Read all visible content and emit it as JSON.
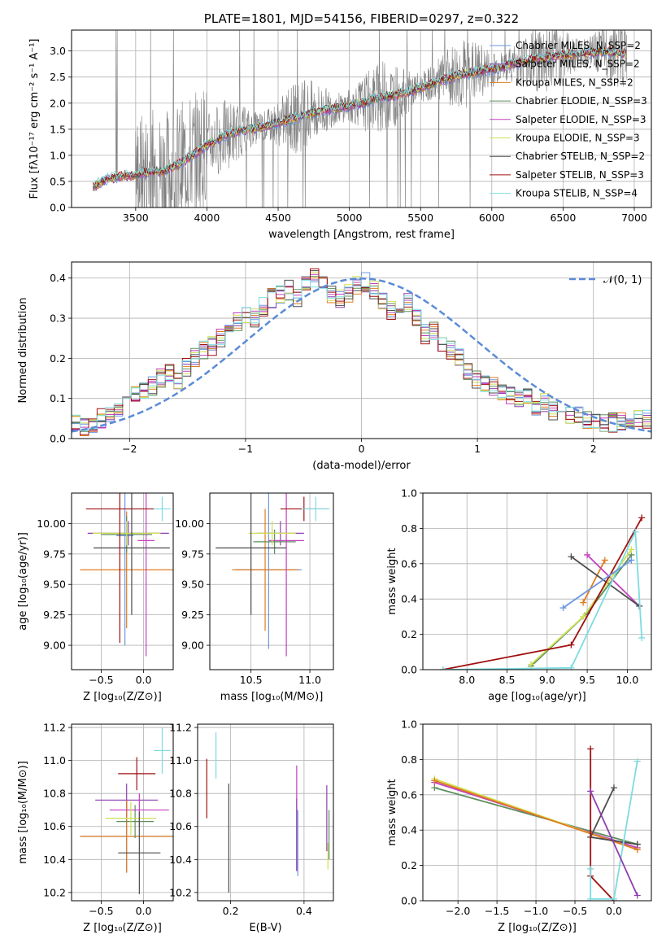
{
  "colors": {
    "chabrier_miles": "#6b98e0",
    "salpeter_miles": "#8f3fb0",
    "kroupa_miles": "#e07b1f",
    "chabrier_elodie": "#5e8f5e",
    "salpeter_elodie": "#c43fbf",
    "kroupa_elodie": "#cfe054",
    "chabrier_stelib": "#4d4d4d",
    "salpeter_stelib": "#a01010",
    "kroupa_stelib": "#7ddbe0",
    "observed": "#808080",
    "normal_curve": "#5b8bd6"
  },
  "chart_data": [
    {
      "id": "spectrum",
      "type": "line",
      "title": "PLATE=1801, MJD=54156, FIBERID=0297, z=0.322",
      "xlabel": "wavelength [Angstrom, rest frame]",
      "ylabel": "Flux [fλ10⁻¹⁷ erg cm⁻² s⁻¹ A⁻¹]",
      "xlim": [
        3050,
        7120
      ],
      "ylim": [
        0,
        3.4
      ],
      "xticks": [
        "3500",
        "4000",
        "4500",
        "5000",
        "5500",
        "6000",
        "6500",
        "7000"
      ],
      "yticks": [
        "0.0",
        "0.5",
        "1.0",
        "1.5",
        "2.0",
        "2.5",
        "3.0"
      ],
      "legend_position": "top-right",
      "legend": [
        "Chabrier MILES, N_SSP=2",
        "Salpeter MILES, N_SSP=2",
        "Kroupa MILES, N_SSP=2",
        "Chabrier ELODIE, N_SSP=3",
        "Salpeter ELODIE, N_SSP=3",
        "Kroupa ELODIE, N_SSP=3",
        "Chabrier STELIB, N_SSP=2",
        "Salpeter STELIB, N_SSP=3",
        "Kroupa STELIB, N_SSP=4"
      ],
      "model_continuum": {
        "x": [
          3200,
          3300,
          3400,
          3500,
          3600,
          3700,
          3800,
          3900,
          4000,
          4100,
          4200,
          4300,
          4400,
          4500,
          4600,
          4700,
          4800,
          4900,
          5000,
          5100,
          5200,
          5300,
          5400,
          5500,
          5600,
          5700,
          5800,
          5900,
          6000,
          6100,
          6200,
          6300,
          6400,
          6500,
          6600,
          6700,
          6800,
          6900
        ],
        "y": [
          0.4,
          0.55,
          0.6,
          0.62,
          0.68,
          0.7,
          0.82,
          1.0,
          1.2,
          1.35,
          1.45,
          1.5,
          1.55,
          1.62,
          1.7,
          1.78,
          1.85,
          1.9,
          1.95,
          2.0,
          2.1,
          2.15,
          2.2,
          2.3,
          2.4,
          2.48,
          2.55,
          2.6,
          2.65,
          2.72,
          2.78,
          2.85,
          2.88,
          2.92,
          2.95,
          2.97,
          3.0,
          2.95
        ]
      }
    },
    {
      "id": "residuals",
      "type": "bar",
      "xlabel": "(data-model)/error",
      "ylabel": "Normed distribution",
      "xlim": [
        -2.5,
        2.5
      ],
      "ylim": [
        0,
        0.44
      ],
      "xticks": [
        "−2",
        "−1",
        "0",
        "1",
        "2"
      ],
      "yticks": [
        "0.0",
        "0.1",
        "0.2",
        "0.3",
        "0.4"
      ],
      "legend": [
        "𝒩(0, 1)"
      ],
      "legend_position": "top-right",
      "bin_edges_start": -2.5,
      "bin_width": 0.1,
      "mean_hist": [
        0.04,
        0.03,
        0.03,
        0.05,
        0.06,
        0.08,
        0.09,
        0.11,
        0.12,
        0.13,
        0.15,
        0.16,
        0.14,
        0.18,
        0.2,
        0.22,
        0.23,
        0.25,
        0.27,
        0.29,
        0.31,
        0.3,
        0.33,
        0.35,
        0.36,
        0.37,
        0.35,
        0.38,
        0.4,
        0.38,
        0.36,
        0.35,
        0.36,
        0.38,
        0.39,
        0.37,
        0.34,
        0.32,
        0.33,
        0.34,
        0.3,
        0.26,
        0.27,
        0.24,
        0.22,
        0.2,
        0.17,
        0.15,
        0.14,
        0.13,
        0.12,
        0.11,
        0.1,
        0.1,
        0.08,
        0.09,
        0.07,
        0.08,
        0.06,
        0.06,
        0.05,
        0.05,
        0.04,
        0.04,
        0.04,
        0.03,
        0.05,
        0.05
      ]
    },
    {
      "id": "age_vs_Z",
      "type": "scatter",
      "xlabel": "Z [log₁₀(Z/Z⊙)]",
      "ylabel": "age  [log₁₀(age/yr)]",
      "xlim": [
        -0.85,
        0.35
      ],
      "ylim": [
        8.8,
        10.25
      ],
      "xticks": [
        "−0.5",
        "0.0"
      ],
      "yticks": [
        "9.00",
        "9.25",
        "9.50",
        "9.75",
        "10.00"
      ],
      "points": [
        {
          "s": "chabrier_miles",
          "x": -0.22,
          "y": 9.9,
          "xerr": 0.1,
          "yerr": 0.9
        },
        {
          "s": "salpeter_miles",
          "x": -0.18,
          "y": 9.92,
          "xerr": 0.48,
          "yerr": 0.1
        },
        {
          "s": "kroupa_miles",
          "x": -0.2,
          "y": 9.62,
          "xerr": 0.55,
          "yerr": 0.48
        },
        {
          "s": "chabrier_elodie",
          "x": -0.2,
          "y": 9.91,
          "xerr": 0.3,
          "yerr": 0.15
        },
        {
          "s": "salpeter_elodie",
          "x": 0.03,
          "y": 9.86,
          "xerr": 0.1,
          "yerr": 0.95
        },
        {
          "s": "kroupa_elodie",
          "x": -0.2,
          "y": 9.92,
          "xerr": 0.4,
          "yerr": 0.1
        },
        {
          "s": "chabrier_stelib",
          "x": -0.14,
          "y": 9.8,
          "xerr": 0.45,
          "yerr": 0.55
        },
        {
          "s": "salpeter_stelib",
          "x": -0.28,
          "y": 10.12,
          "xerr": 0.4,
          "yerr": 1.1
        },
        {
          "s": "kroupa_stelib",
          "x": 0.22,
          "y": 10.12,
          "xerr": 0.1,
          "yerr": 0.1
        }
      ]
    },
    {
      "id": "age_vs_mass",
      "type": "scatter",
      "xlabel": "mass [log₁₀(M/M⊙)]",
      "xlim": [
        10.15,
        11.2
      ],
      "ylim": [
        8.8,
        10.25
      ],
      "xticks": [
        "10.5",
        "11.0"
      ],
      "yticks": [
        "9.00",
        "9.25",
        "9.50",
        "9.75",
        "10.00"
      ],
      "points": [
        {
          "s": "chabrier_miles",
          "x": 10.65,
          "y": 9.62,
          "xerr": 0.28,
          "yerr": 0.65
        },
        {
          "s": "salpeter_miles",
          "x": 10.75,
          "y": 9.92,
          "xerr": 0.2,
          "yerr": 0.1
        },
        {
          "s": "kroupa_miles",
          "x": 10.62,
          "y": 9.62,
          "xerr": 0.28,
          "yerr": 0.5
        },
        {
          "s": "chabrier_elodie",
          "x": 10.7,
          "y": 9.85,
          "xerr": 0.18,
          "yerr": 0.1
        },
        {
          "s": "salpeter_elodie",
          "x": 10.8,
          "y": 9.86,
          "xerr": 0.15,
          "yerr": 0.95
        },
        {
          "s": "kroupa_elodie",
          "x": 10.68,
          "y": 9.92,
          "xerr": 0.2,
          "yerr": 0.1
        },
        {
          "s": "chabrier_stelib",
          "x": 10.5,
          "y": 9.8,
          "xerr": 0.3,
          "yerr": 0.55
        },
        {
          "s": "salpeter_stelib",
          "x": 10.95,
          "y": 10.12,
          "xerr": 0.2,
          "yerr": 0.1
        },
        {
          "s": "kroupa_stelib",
          "x": 11.05,
          "y": 10.12,
          "xerr": 0.12,
          "yerr": 0.1
        }
      ]
    },
    {
      "id": "weight_vs_age",
      "type": "line",
      "xlabel": "age  [log₁₀(age/yr)]",
      "ylabel": "mass weight",
      "xlim": [
        7.45,
        10.3
      ],
      "ylim": [
        0,
        1
      ],
      "xticks": [
        "8.0",
        "8.5",
        "9.0",
        "9.5",
        "10.0"
      ],
      "yticks": [
        "0.0",
        "0.2",
        "0.4",
        "0.6",
        "0.8",
        "1.0"
      ],
      "series": [
        {
          "s": "kroupa_miles",
          "x": [
            9.45,
            9.72
          ],
          "y": [
            0.38,
            0.62
          ]
        },
        {
          "s": "salpeter_elodie",
          "x": [
            9.5,
            10.15
          ],
          "y": [
            0.65,
            0.36
          ]
        },
        {
          "s": "chabrier_stelib",
          "x": [
            9.3,
            10.15
          ],
          "y": [
            0.64,
            0.36
          ]
        },
        {
          "s": "chabrier_elodie",
          "x": [
            8.8,
            9.5,
            10.05
          ],
          "y": [
            0.02,
            0.32,
            0.65
          ]
        },
        {
          "s": "kroupa_elodie",
          "x": [
            8.8,
            9.45,
            10.05
          ],
          "y": [
            0.03,
            0.3,
            0.68
          ]
        },
        {
          "s": "salpeter_stelib",
          "x": [
            7.7,
            9.3,
            10.18
          ],
          "y": [
            0.0,
            0.14,
            0.86
          ]
        },
        {
          "s": "kroupa_stelib",
          "x": [
            7.7,
            9.3,
            10.1,
            10.18
          ],
          "y": [
            0.0,
            0.01,
            0.78,
            0.18
          ]
        },
        {
          "s": "chabrier_miles",
          "x": [
            9.2,
            10.05
          ],
          "y": [
            0.35,
            0.62
          ]
        }
      ]
    },
    {
      "id": "mass_vs_Z",
      "type": "scatter",
      "xlabel": "Z [log₁₀(Z/Z⊙)]",
      "ylabel": "mass [log₁₀(M/M⊙)]",
      "xlim": [
        -0.85,
        0.35
      ],
      "ylim": [
        10.15,
        11.22
      ],
      "xticks": [
        "−0.5",
        "0.0"
      ],
      "yticks": [
        "10.2",
        "10.4",
        "10.6",
        "10.8",
        "11.0",
        "11.2"
      ],
      "points": [
        {
          "s": "chabrier_miles",
          "x": -0.2,
          "y": 10.54,
          "xerr": 0.55,
          "yerr": 0.22
        },
        {
          "s": "salpeter_miles",
          "x": -0.2,
          "y": 10.76,
          "xerr": 0.37,
          "yerr": 0.1
        },
        {
          "s": "kroupa_miles",
          "x": -0.2,
          "y": 10.54,
          "xerr": 0.55,
          "yerr": 0.22
        },
        {
          "s": "chabrier_elodie",
          "x": -0.1,
          "y": 10.63,
          "xerr": 0.22,
          "yerr": 0.1
        },
        {
          "s": "salpeter_elodie",
          "x": -0.05,
          "y": 10.7,
          "xerr": 0.35,
          "yerr": 0.1
        },
        {
          "s": "kroupa_elodie",
          "x": -0.15,
          "y": 10.65,
          "xerr": 0.3,
          "yerr": 0.1
        },
        {
          "s": "chabrier_stelib",
          "x": -0.05,
          "y": 10.44,
          "xerr": 0.25,
          "yerr": 0.25
        },
        {
          "s": "salpeter_stelib",
          "x": -0.08,
          "y": 10.92,
          "xerr": 0.22,
          "yerr": 0.1
        },
        {
          "s": "kroupa_stelib",
          "x": 0.22,
          "y": 11.06,
          "xerr": 0.1,
          "yerr": 0.14
        }
      ]
    },
    {
      "id": "mass_vs_ebv",
      "type": "scatter",
      "xlabel": "E(B-V)",
      "xlim": [
        0.11,
        0.48
      ],
      "ylim": [
        10.15,
        11.22
      ],
      "xticks": [
        "0.2",
        "0.4"
      ],
      "yticks": [
        "10.2",
        "10.4",
        "10.6",
        "10.8",
        "11.0",
        "11.2"
      ],
      "points": [
        {
          "s": "salpeter_stelib",
          "x": 0.135,
          "y": 10.83,
          "yerr": 0.18
        },
        {
          "s": "kroupa_stelib",
          "x": 0.16,
          "y": 11.03,
          "yerr": 0.14
        },
        {
          "s": "chabrier_stelib",
          "x": 0.195,
          "y": 10.53,
          "yerr": 0.33
        },
        {
          "s": "salpeter_elodie",
          "x": 0.38,
          "y": 10.65,
          "yerr": 0.32
        },
        {
          "s": "salpeter_miles",
          "x": 0.38,
          "y": 10.55,
          "yerr": 0.22
        },
        {
          "s": "chabrier_miles",
          "x": 0.383,
          "y": 10.5,
          "yerr": 0.2
        },
        {
          "s": "kroupa_elodie",
          "x": 0.465,
          "y": 10.42,
          "yerr": 0.08
        },
        {
          "s": "salpeter_miles",
          "x": 0.462,
          "y": 10.65,
          "yerr": 0.2
        },
        {
          "s": "chabrier_elodie",
          "x": 0.468,
          "y": 10.55,
          "yerr": 0.15
        }
      ]
    },
    {
      "id": "weight_vs_Z",
      "type": "line",
      "xlabel": "Z [log₁₀(Z/Z⊙)]",
      "ylabel": "mass weight",
      "xlim": [
        -2.45,
        0.48
      ],
      "ylim": [
        0,
        1
      ],
      "xticks": [
        "−2.0",
        "−1.5",
        "−1.0",
        "−0.5",
        "0.0"
      ],
      "yticks": [
        "0.0",
        "0.2",
        "0.4",
        "0.6",
        "0.8",
        "1.0"
      ],
      "series": [
        {
          "s": "chabrier_elodie",
          "x": [
            -2.3,
            0.3
          ],
          "y": [
            0.64,
            0.32
          ]
        },
        {
          "s": "salpeter_elodie",
          "x": [
            -2.3,
            0.3
          ],
          "y": [
            0.67,
            0.3
          ]
        },
        {
          "s": "kroupa_elodie",
          "x": [
            -2.3,
            0.3
          ],
          "y": [
            0.69,
            0.29
          ]
        },
        {
          "s": "kroupa_miles",
          "x": [
            -2.3,
            0.3
          ],
          "y": [
            0.68,
            0.29
          ]
        },
        {
          "s": "chabrier_stelib",
          "x": [
            -0.3,
            0.0,
            -0.3,
            0.3
          ],
          "y": [
            0.36,
            0.64,
            0.36,
            0.32
          ]
        },
        {
          "s": "salpeter_stelib",
          "x": [
            -0.3,
            -0.3,
            0.0
          ],
          "y": [
            0.86,
            0.14,
            0.0
          ]
        },
        {
          "s": "kroupa_stelib",
          "x": [
            -0.3,
            -0.3,
            0.0,
            0.3
          ],
          "y": [
            0.18,
            0.01,
            0.01,
            0.79
          ]
        },
        {
          "s": "salpeter_miles",
          "x": [
            -0.3,
            0.3
          ],
          "y": [
            0.62,
            0.03
          ]
        }
      ]
    }
  ]
}
